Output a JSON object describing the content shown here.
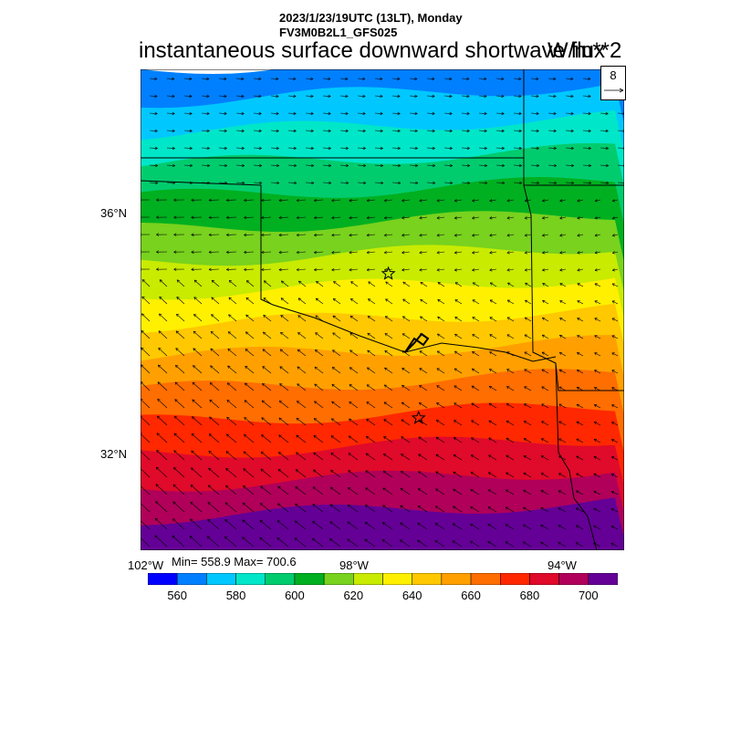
{
  "header": {
    "line1": "2023/1/23/19UTC (13LT), Monday",
    "line2": "FV3M0B2L1_GFS025",
    "title": "instantaneous surface downward shortwave flux",
    "units": "W/m**2"
  },
  "map": {
    "lat_labels": [
      "36°N",
      "32°N"
    ],
    "lon_labels": [
      "102°W",
      "98°W",
      "94°W"
    ],
    "lat_range": [
      30.5,
      38.5
    ],
    "lon_range": [
      -102.0,
      -94.0
    ],
    "ref_vector_label": "8",
    "stations": [
      {
        "name": "star",
        "lon": -97.9,
        "lat": 35.1
      },
      {
        "name": "star",
        "lon": -97.4,
        "lat": 32.7
      }
    ]
  },
  "stats": {
    "min_max": "Min= 558.9 Max= 700.6"
  },
  "colorbar": {
    "labels": [
      "560",
      "580",
      "600",
      "620",
      "640",
      "660",
      "680",
      "700"
    ],
    "colors": [
      "#0000ff",
      "#0080ff",
      "#00c8ff",
      "#00e6c8",
      "#00cc6e",
      "#00b020",
      "#78d21e",
      "#c8eb00",
      "#fff000",
      "#ffc800",
      "#ffa000",
      "#ff6e00",
      "#ff2800",
      "#e00a2a",
      "#b0005a",
      "#640096"
    ]
  },
  "icons": {
    "star": "star-icon",
    "arrow": "arrow-icon"
  }
}
